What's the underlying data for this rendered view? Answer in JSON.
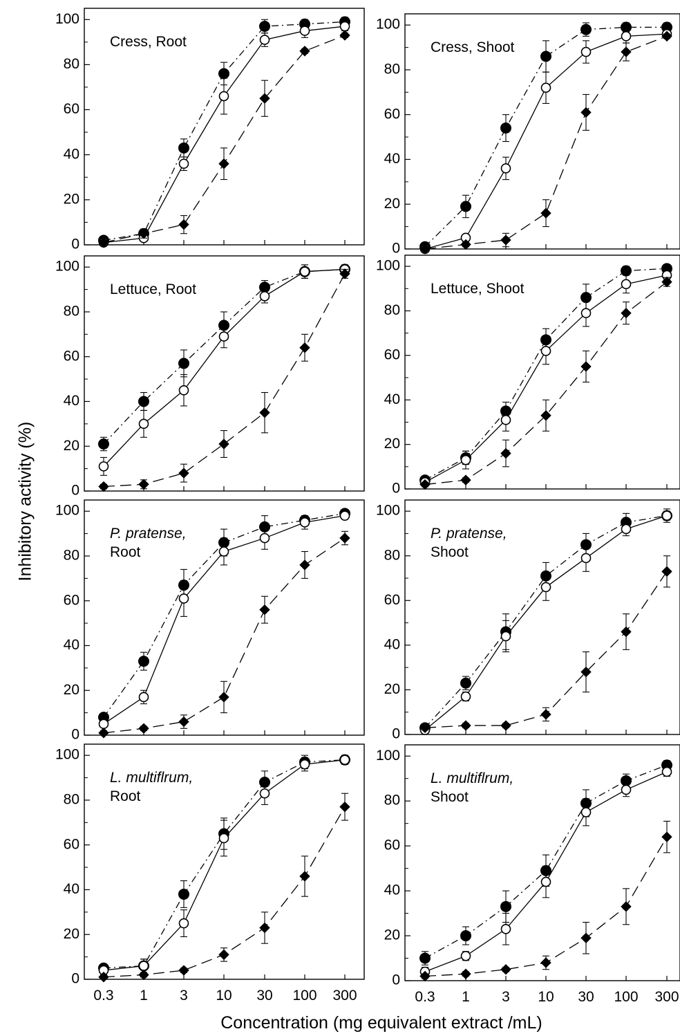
{
  "figure": {
    "ylabel": "Inhibitory activity    (%)",
    "xlabel": "Concentration (mg equivalent extract /mL)"
  },
  "axis": {
    "x_tick_labels": [
      "0.3",
      "1",
      "3",
      "10",
      "30",
      "100",
      "300"
    ],
    "x_values": [
      0.3,
      1,
      3,
      10,
      30,
      100,
      300
    ],
    "x_scale": "log",
    "y_ticks": [
      0,
      20,
      40,
      60,
      80,
      100
    ],
    "ylim": [
      0,
      105
    ]
  },
  "series_styles": [
    {
      "marker": "filled-circle",
      "line": "dash-dot",
      "color": "#000000"
    },
    {
      "marker": "open-circle",
      "line": "solid",
      "color": "#000000"
    },
    {
      "marker": "filled-diamond",
      "line": "long-dash",
      "color": "#000000"
    }
  ],
  "chart_data": [
    {
      "type": "line",
      "title": [
        "Cress, Root"
      ],
      "italic_first": false,
      "x": [
        0.3,
        1,
        3,
        10,
        30,
        100,
        300
      ],
      "series": [
        {
          "values": [
            2,
            5,
            43,
            76,
            97,
            98,
            99
          ],
          "errors": [
            1,
            1,
            4,
            5,
            3,
            2,
            2
          ]
        },
        {
          "values": [
            1,
            3,
            36,
            66,
            91,
            95,
            97
          ],
          "errors": [
            1,
            1,
            3,
            8,
            3,
            3,
            2
          ]
        },
        {
          "values": [
            1,
            5,
            9,
            36,
            65,
            86,
            93
          ],
          "errors": [
            1,
            2,
            4,
            7,
            8,
            1,
            1
          ]
        }
      ]
    },
    {
      "type": "line",
      "title": [
        "Cress, Shoot"
      ],
      "italic_first": false,
      "x": [
        0.3,
        1,
        3,
        10,
        30,
        100,
        300
      ],
      "series": [
        {
          "values": [
            1,
            19,
            54,
            86,
            98,
            99,
            99
          ],
          "errors": [
            1,
            5,
            6,
            7,
            3,
            2,
            2
          ]
        },
        {
          "values": [
            0,
            5,
            36,
            72,
            88,
            95,
            96
          ],
          "errors": [
            1,
            1,
            5,
            7,
            5,
            3,
            2
          ]
        },
        {
          "values": [
            0,
            2,
            4,
            16,
            61,
            88,
            95
          ],
          "errors": [
            1,
            1,
            3,
            6,
            8,
            4,
            1
          ]
        }
      ]
    },
    {
      "type": "line",
      "title": [
        "Lettuce, Root"
      ],
      "italic_first": false,
      "x": [
        0.3,
        1,
        3,
        10,
        30,
        100,
        300
      ],
      "series": [
        {
          "values": [
            21,
            40,
            57,
            74,
            91,
            98,
            99
          ],
          "errors": [
            3,
            4,
            6,
            6,
            3,
            3,
            2
          ]
        },
        {
          "values": [
            11,
            30,
            45,
            69,
            87,
            98,
            99
          ],
          "errors": [
            4,
            6,
            7,
            5,
            3,
            3,
            2
          ]
        },
        {
          "values": [
            2,
            3,
            8,
            21,
            35,
            64,
            97
          ],
          "errors": [
            1,
            2,
            4,
            6,
            9,
            6,
            2
          ]
        }
      ]
    },
    {
      "type": "line",
      "title": [
        "Lettuce, Shoot"
      ],
      "italic_first": false,
      "x": [
        0.3,
        1,
        3,
        10,
        30,
        100,
        300
      ],
      "series": [
        {
          "values": [
            4,
            14,
            35,
            67,
            86,
            98,
            99
          ],
          "errors": [
            1,
            3,
            4,
            5,
            6,
            2,
            1
          ]
        },
        {
          "values": [
            3,
            13,
            31,
            62,
            79,
            92,
            96
          ],
          "errors": [
            1,
            4,
            5,
            6,
            6,
            4,
            2
          ]
        },
        {
          "values": [
            2,
            4,
            16,
            33,
            55,
            79,
            93
          ],
          "errors": [
            1,
            1,
            6,
            7,
            7,
            5,
            2
          ]
        }
      ]
    },
    {
      "type": "line",
      "title": [
        "P. pratense,",
        "Root"
      ],
      "italic_first": true,
      "x": [
        0.3,
        1,
        3,
        10,
        30,
        100,
        300
      ],
      "series": [
        {
          "values": [
            8,
            33,
            67,
            86,
            93,
            96,
            99
          ],
          "errors": [
            1,
            4,
            7,
            6,
            5,
            2,
            1
          ]
        },
        {
          "values": [
            5,
            17,
            61,
            82,
            88,
            95,
            98
          ],
          "errors": [
            1,
            3,
            8,
            6,
            5,
            3,
            1
          ]
        },
        {
          "values": [
            1,
            3,
            6,
            17,
            56,
            76,
            88
          ],
          "errors": [
            1,
            1,
            3,
            7,
            6,
            6,
            3
          ]
        }
      ]
    },
    {
      "type": "line",
      "title": [
        "P. pratense,",
        "Shoot"
      ],
      "italic_first": true,
      "x": [
        0.3,
        1,
        3,
        10,
        30,
        100,
        300
      ],
      "series": [
        {
          "values": [
            3,
            23,
            46,
            71,
            85,
            95,
            98
          ],
          "errors": [
            1,
            3,
            8,
            6,
            5,
            4,
            3
          ]
        },
        {
          "values": [
            2,
            17,
            44,
            66,
            79,
            92,
            98
          ],
          "errors": [
            1,
            2,
            7,
            6,
            6,
            3,
            2
          ]
        },
        {
          "values": [
            3,
            4,
            4,
            9,
            28,
            46,
            73
          ],
          "errors": [
            1,
            1,
            1,
            3,
            9,
            8,
            7
          ]
        }
      ]
    },
    {
      "type": "line",
      "title": [
        "L. multiflrum,",
        "Root"
      ],
      "italic_first": true,
      "x": [
        0.3,
        1,
        3,
        10,
        30,
        100,
        300
      ],
      "series": [
        {
          "values": [
            5,
            6,
            38,
            65,
            88,
            97,
            98
          ],
          "errors": [
            1,
            3,
            6,
            7,
            5,
            3,
            2
          ]
        },
        {
          "values": [
            4,
            6,
            25,
            63,
            83,
            96,
            98
          ],
          "errors": [
            1,
            3,
            6,
            8,
            5,
            3,
            2
          ]
        },
        {
          "values": [
            1,
            2,
            4,
            11,
            23,
            46,
            77
          ],
          "errors": [
            1,
            1,
            1,
            3,
            7,
            9,
            6
          ]
        }
      ]
    },
    {
      "type": "line",
      "title": [
        "L. multiflrum,",
        "Shoot"
      ],
      "italic_first": true,
      "x": [
        0.3,
        1,
        3,
        10,
        30,
        100,
        300
      ],
      "series": [
        {
          "values": [
            10,
            20,
            33,
            49,
            79,
            89,
            96
          ],
          "errors": [
            3,
            4,
            7,
            7,
            6,
            3,
            2
          ]
        },
        {
          "values": [
            4,
            11,
            23,
            44,
            75,
            85,
            93
          ],
          "errors": [
            2,
            2,
            7,
            7,
            6,
            3,
            2
          ]
        },
        {
          "values": [
            2,
            3,
            5,
            8,
            19,
            33,
            64
          ],
          "errors": [
            1,
            1,
            1,
            3,
            7,
            8,
            7
          ]
        }
      ]
    }
  ]
}
